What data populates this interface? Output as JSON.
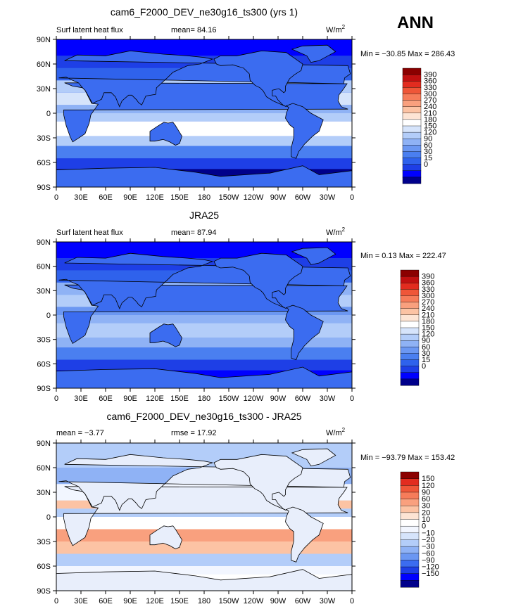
{
  "season": "ANN",
  "colors_abs": [
    "#00008b",
    "#0000ff",
    "#1e3fe6",
    "#2f62ec",
    "#4a7ff0",
    "#6b97f2",
    "#8fb2f5",
    "#b3cdf9",
    "#d6e4fb",
    "#ffffff",
    "#fde4d4",
    "#fcc3a4",
    "#f9a07e",
    "#f67c5a",
    "#ef5638",
    "#e22c1f",
    "#c01010",
    "#8b0000"
  ],
  "colors_diff": [
    "#00008b",
    "#0000ff",
    "#1e3fe6",
    "#3b6cf0",
    "#6b97f2",
    "#8fb2f5",
    "#b3cdf9",
    "#d6e4fb",
    "#f2f6ff",
    "#ffffff",
    "#fde4d4",
    "#fcc3a4",
    "#f9a07e",
    "#f67c5a",
    "#ef5638",
    "#e22c1f",
    "#8b0000"
  ],
  "panels": [
    {
      "title": "cam6_F2000_DEV_ne30g16_ts300 (yrs 1)",
      "left_text": "Surf latent heat flux",
      "mid_text": "mean=  84.16",
      "units_base": "W/m",
      "units_exp": "2",
      "minmax": "Min = −30.85 Max = 286.43",
      "colorbar_labels": [
        "390",
        "360",
        "330",
        "300",
        "270",
        "240",
        "210",
        "180",
        "150",
        "120",
        "90",
        "60",
        "30",
        "15",
        "0"
      ]
    },
    {
      "title": "JRA25",
      "left_text": "Surf latent heat flux",
      "mid_text": "mean=  87.94",
      "units_base": "W/m",
      "units_exp": "2",
      "minmax": "Min =    0.13 Max = 222.47",
      "colorbar_labels": [
        "390",
        "360",
        "330",
        "300",
        "270",
        "240",
        "210",
        "180",
        "150",
        "120",
        "90",
        "60",
        "30",
        "15",
        "0"
      ]
    },
    {
      "title": "cam6_F2000_DEV_ne30g16_ts300 - JRA25",
      "left_text": "mean =   −3.77",
      "mid_text": "rmse =   17.92",
      "units_base": "W/m",
      "units_exp": "2",
      "minmax": "Min = −93.79 Max = 153.42",
      "colorbar_labels": [
        "150",
        "120",
        "90",
        "60",
        "30",
        "20",
        "10",
        "0",
        "−10",
        "−20",
        "−30",
        "−60",
        "−90",
        "−120",
        "−150"
      ]
    }
  ],
  "chart_data": [
    {
      "type": "heatmap",
      "title": "cam6_F2000_DEV_ne30g16_ts300 (yrs 1)",
      "variable": "Surf latent heat flux",
      "units": "W/m2",
      "mean": 84.16,
      "min": -30.85,
      "max": 286.43,
      "x_ticks": [
        "0",
        "30E",
        "60E",
        "90E",
        "120E",
        "150E",
        "180",
        "150W",
        "120W",
        "90W",
        "60W",
        "30W",
        "0"
      ],
      "y_ticks": [
        "90N",
        "60N",
        "30N",
        "0",
        "30S",
        "60S",
        "90S"
      ],
      "xlim": [
        0,
        360
      ],
      "ylim": [
        -90,
        90
      ],
      "levels": [
        0,
        15,
        30,
        60,
        90,
        120,
        150,
        180,
        210,
        240,
        270,
        300,
        330,
        360,
        390
      ]
    },
    {
      "type": "heatmap",
      "title": "JRA25",
      "variable": "Surf latent heat flux",
      "units": "W/m2",
      "mean": 87.94,
      "min": 0.13,
      "max": 222.47,
      "x_ticks": [
        "0",
        "30E",
        "60E",
        "90E",
        "120E",
        "150E",
        "180",
        "150W",
        "120W",
        "90W",
        "60W",
        "30W",
        "0"
      ],
      "y_ticks": [
        "90N",
        "60N",
        "30N",
        "0",
        "30S",
        "60S",
        "90S"
      ],
      "xlim": [
        0,
        360
      ],
      "ylim": [
        -90,
        90
      ],
      "levels": [
        0,
        15,
        30,
        60,
        90,
        120,
        150,
        180,
        210,
        240,
        270,
        300,
        330,
        360,
        390
      ]
    },
    {
      "type": "heatmap",
      "title": "cam6_F2000_DEV_ne30g16_ts300 - JRA25",
      "units": "W/m2",
      "mean": -3.77,
      "rmse": 17.92,
      "min": -93.79,
      "max": 153.42,
      "x_ticks": [
        "0",
        "30E",
        "60E",
        "90E",
        "120E",
        "150E",
        "180",
        "150W",
        "120W",
        "90W",
        "60W",
        "30W",
        "0"
      ],
      "y_ticks": [
        "90N",
        "60N",
        "30N",
        "0",
        "30S",
        "60S",
        "90S"
      ],
      "xlim": [
        0,
        360
      ],
      "ylim": [
        -90,
        90
      ],
      "levels": [
        -150,
        -120,
        -90,
        -60,
        -30,
        -20,
        -10,
        0,
        10,
        20,
        30,
        60,
        90,
        120,
        150
      ]
    }
  ]
}
